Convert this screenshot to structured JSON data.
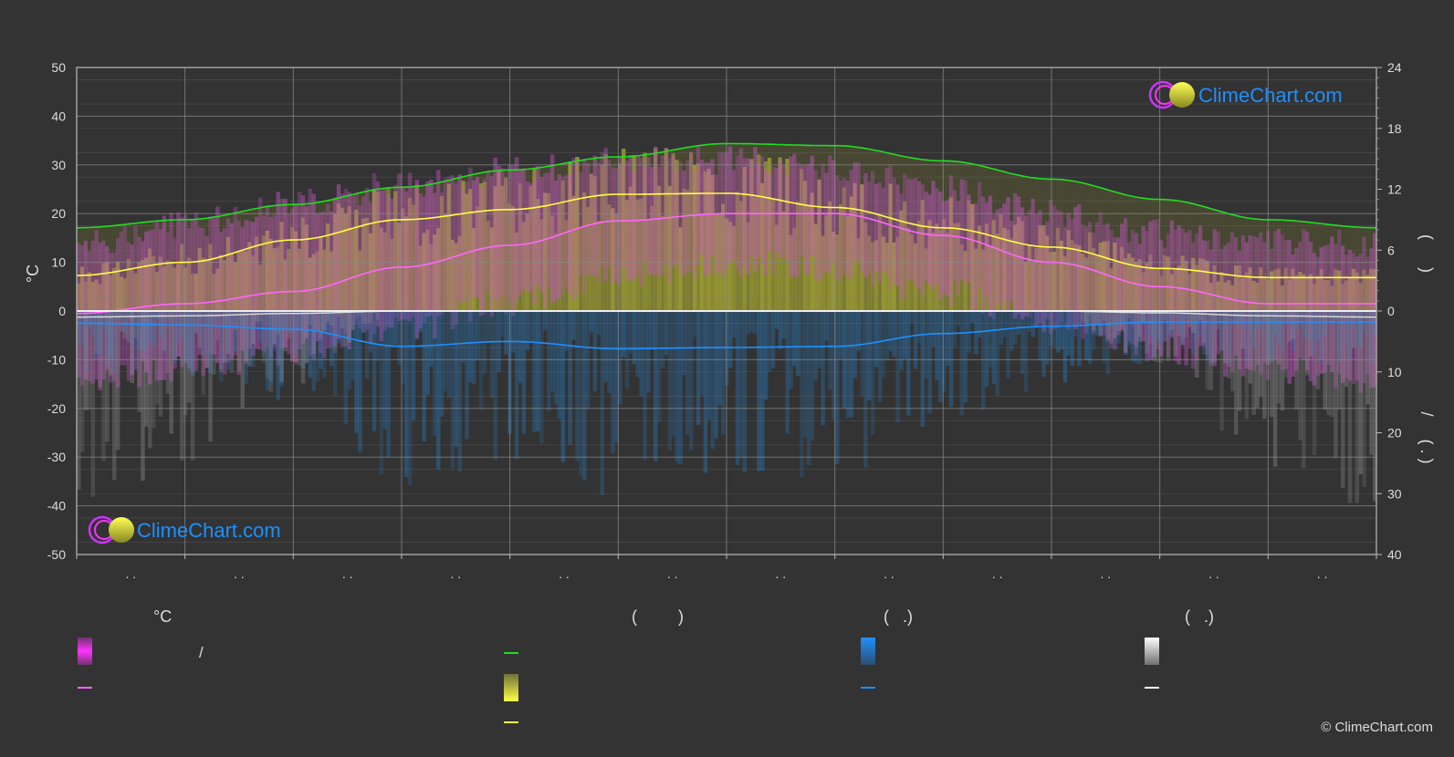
{
  "chart_data": {
    "type": "area",
    "title": "",
    "months": [
      ". .",
      ". .",
      ". .",
      ". .",
      ". .",
      ". .",
      ". .",
      ". .",
      ". .",
      ". .",
      ". .",
      ". ."
    ],
    "left_axis": {
      "label": "°C",
      "min": -50,
      "max": 50,
      "ticks": [
        "50",
        "40",
        "30",
        "20",
        "10",
        "0",
        "-10",
        "-20",
        "-30",
        "-40",
        "-50"
      ]
    },
    "right_axis_top": {
      "label": "(      )",
      "min": 0,
      "max": 24,
      "ticks": [
        "24",
        "18",
        "12",
        "6",
        "0"
      ]
    },
    "right_axis_bottom": {
      "label": "/     ( . )",
      "min": 0,
      "max": 40,
      "ticks": [
        "10",
        "20",
        "30",
        "40"
      ]
    },
    "series": {
      "daylight_hours_green": [
        8.2,
        9.0,
        10.5,
        12.2,
        13.9,
        15.2,
        16.5,
        16.3,
        14.8,
        13.0,
        11.0,
        9.0,
        8.2
      ],
      "sunshine_hours_yellow": [
        3.5,
        4.8,
        7.0,
        9.0,
        10.0,
        11.5,
        11.6,
        10.2,
        8.2,
        6.3,
        4.2,
        3.3,
        3.3
      ],
      "avg_temp_pink": [
        -0.5,
        1.5,
        4.0,
        9.0,
        13.5,
        18.5,
        20.0,
        20.0,
        15.5,
        10.0,
        5.0,
        1.5,
        1.5
      ],
      "avg_precip_mm_blue": [
        2.0,
        2.3,
        3.0,
        5.8,
        5.0,
        6.2,
        6.0,
        5.8,
        3.7,
        2.5,
        1.8,
        1.8,
        1.8
      ],
      "avg_snow_white": [
        1.0,
        0.8,
        0.4,
        0.0,
        0.0,
        0.0,
        0.0,
        0.0,
        0.0,
        0.0,
        0.3,
        0.8,
        1.0
      ],
      "temp_band_max": [
        14,
        18,
        22,
        26,
        29,
        31,
        31,
        29,
        25,
        20,
        16,
        14,
        14
      ],
      "temp_band_min": [
        -14,
        -12,
        -8,
        -4,
        2,
        7,
        10,
        9,
        4,
        -2,
        -8,
        -12,
        -14
      ]
    },
    "legend": {
      "col1": {
        "header": "°C",
        "row1_text": "/",
        "row2_text": ""
      },
      "col2": {
        "header": "(         )",
        "row1_text": "",
        "row2_text": "",
        "row3_text": ""
      },
      "col3": {
        "header": "(   .)",
        "row1_text": "",
        "row2_text": ""
      },
      "col4": {
        "header": "(   .)",
        "row1_text": "",
        "row2_text": ""
      }
    },
    "colors": {
      "background": "#333333",
      "daylight": "#22dd22",
      "sunshine": "#ffff44",
      "temperature": "#ff66ff",
      "precipitation": "#1e90ff",
      "snow": "#ffffff",
      "grid": "#888888"
    }
  },
  "branding": {
    "logo_text": "ClimeChart.com",
    "copyright": "© ClimeChart.com"
  }
}
